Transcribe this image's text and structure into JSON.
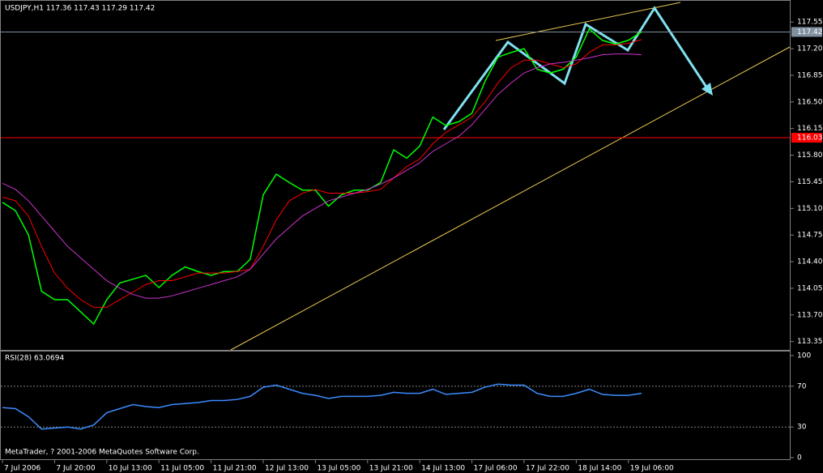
{
  "chart_data": [
    {
      "type": "line",
      "title": "USDJPY,H1  117.36 117.43 117.29 117.42",
      "categories": [
        "7 Jul 2006",
        null,
        null,
        null,
        "7 Jul 20:00",
        null,
        null,
        null,
        "10 Jul 13:00",
        null,
        null,
        null,
        "11 Jul 05:00",
        null,
        null,
        null,
        "11 Jul 21:00",
        null,
        null,
        null,
        "12 Jul 13:00",
        null,
        null,
        null,
        "13 Jul 05:00",
        null,
        null,
        null,
        "13 Jul 21:00",
        null,
        null,
        null,
        "14 Jul 13:00",
        null,
        null,
        null,
        "17 Jul 06:00",
        null,
        null,
        null,
        "17 Jul 22:00",
        null,
        null,
        null,
        "18 Jul 14:00",
        null,
        null,
        null,
        "19 Jul 06:00",
        null
      ],
      "series": [
        {
          "color": "#00ff00",
          "values": [
            115.18,
            115.07,
            114.75,
            114.01,
            113.9,
            113.9,
            113.74,
            113.58,
            113.9,
            114.12,
            114.17,
            114.22,
            114.06,
            114.22,
            114.33,
            114.27,
            114.22,
            114.27,
            114.27,
            114.43,
            115.28,
            115.55,
            115.44,
            115.34,
            115.34,
            115.13,
            115.28,
            115.34,
            115.34,
            115.44,
            115.87,
            115.76,
            115.92,
            116.3,
            116.19,
            116.24,
            116.35,
            116.77,
            117.09,
            117.15,
            117.2,
            116.93,
            116.88,
            116.93,
            117.09,
            117.46,
            117.31,
            117.26,
            117.31,
            117.42
          ]
        },
        {
          "color": "#ff0000",
          "values": [
            115.25,
            115.2,
            115.0,
            114.6,
            114.25,
            114.05,
            113.9,
            113.8,
            113.8,
            113.9,
            114.0,
            114.1,
            114.15,
            114.15,
            114.2,
            114.25,
            114.25,
            114.25,
            114.27,
            114.3,
            114.6,
            114.95,
            115.2,
            115.3,
            115.35,
            115.3,
            115.3,
            115.3,
            115.32,
            115.35,
            115.5,
            115.65,
            115.75,
            115.95,
            116.1,
            116.2,
            116.3,
            116.5,
            116.75,
            116.95,
            117.05,
            117.05,
            117.0,
            116.95,
            117.0,
            117.15,
            117.25,
            117.25,
            117.27,
            117.32
          ]
        },
        {
          "color": "#cc33cc",
          "values": [
            115.43,
            115.35,
            115.2,
            115.0,
            114.8,
            114.6,
            114.45,
            114.3,
            114.15,
            114.05,
            113.97,
            113.92,
            113.92,
            113.95,
            114.0,
            114.05,
            114.1,
            114.15,
            114.2,
            114.3,
            114.5,
            114.7,
            114.85,
            115.0,
            115.1,
            115.2,
            115.25,
            115.3,
            115.35,
            115.42,
            115.5,
            115.6,
            115.7,
            115.85,
            115.95,
            116.05,
            116.2,
            116.4,
            116.6,
            116.75,
            116.88,
            116.95,
            117.0,
            117.02,
            117.05,
            117.08,
            117.12,
            117.13,
            117.13,
            117.12
          ]
        }
      ],
      "ylim": [
        113.24,
        117.84
      ],
      "yticks": [
        113.35,
        {
          "value": 113.7,
          "label": "113.70"
        },
        114.05,
        {
          "value": 114.4,
          "label": "114.40"
        },
        114.75,
        {
          "value": 115.1,
          "label": "115.10"
        },
        115.45,
        {
          "value": 115.8,
          "label": "115.80"
        },
        116.15,
        {
          "value": 116.5,
          "label": "116.50"
        },
        116.85,
        {
          "value": 117.2,
          "label": "117.20"
        },
        117.55
      ],
      "hlines": [
        {
          "value": 117.42,
          "color": "#8090a0"
        },
        {
          "value": 116.03,
          "color": "#ff0000"
        }
      ]
    },
    {
      "type": "line",
      "title": "RSI(28) 63.0694",
      "series": [
        {
          "color": "#3c8cff",
          "values": [
            49,
            48,
            40,
            28,
            29,
            30,
            28,
            32,
            44,
            48,
            52,
            50,
            49,
            52,
            53,
            54,
            56,
            56,
            57,
            60,
            69,
            71,
            67,
            63,
            61,
            58,
            60,
            60,
            60,
            61,
            64,
            63,
            63,
            67,
            62,
            63,
            64,
            69,
            72,
            71,
            71,
            63,
            60,
            60,
            63,
            67,
            62,
            61,
            61,
            63
          ]
        }
      ],
      "ylim": [
        -2.4,
        104
      ],
      "yticks": [
        0,
        30,
        70,
        100
      ],
      "levels": [
        30,
        70
      ]
    }
  ],
  "footer": "MetaTrader, ? 2001-2006 MetaQuotes Software Corp."
}
